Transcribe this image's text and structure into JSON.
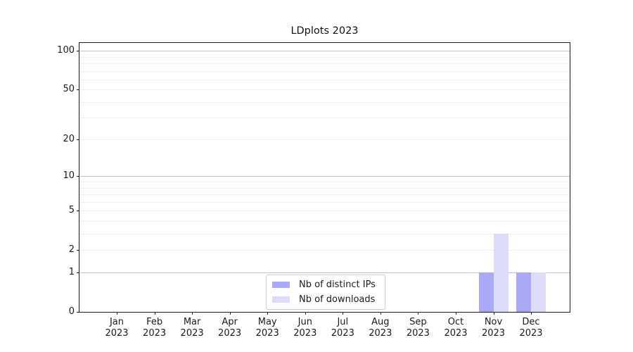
{
  "figure": {
    "background": "#ffffff",
    "axis_color": "#1a1a1a",
    "text_color": "#111111"
  },
  "chart_data": {
    "type": "bar",
    "title": "LDplots 2023",
    "categories": [
      "Jan 2023",
      "Feb 2023",
      "Mar 2023",
      "Apr 2023",
      "May 2023",
      "Jun 2023",
      "Jul 2023",
      "Aug 2023",
      "Sep 2023",
      "Oct 2023",
      "Nov 2023",
      "Dec 2023"
    ],
    "series": [
      {
        "name": "Nb of distinct IPs",
        "color": "#aaa9f8",
        "values": [
          0,
          0,
          0,
          0,
          0,
          0,
          0,
          0,
          0,
          0,
          1,
          1
        ]
      },
      {
        "name": "Nb of downloads",
        "color": "#dcdcfa",
        "values": [
          0,
          0,
          0,
          0,
          0,
          0,
          0,
          0,
          0,
          0,
          3,
          1
        ]
      }
    ],
    "xlabel": "",
    "ylabel": "",
    "yscale": "log1p",
    "ylim": [
      0,
      115
    ],
    "ytick_values": [
      0,
      1,
      2,
      5,
      10,
      20,
      50,
      100
    ],
    "ytick_labels": [
      "0",
      "1",
      "2",
      "5",
      "10",
      "20",
      "50",
      "100"
    ],
    "grid": {
      "orientation": "horizontal",
      "major_values": [
        1,
        10,
        100
      ],
      "minor_values": [
        2,
        3,
        4,
        5,
        6,
        7,
        8,
        9,
        20,
        30,
        40,
        50,
        60,
        70,
        80,
        90
      ],
      "major_color": "#c3c3c3",
      "minor_color": "#f0f0f0"
    },
    "legend_position": "lower center inside"
  }
}
